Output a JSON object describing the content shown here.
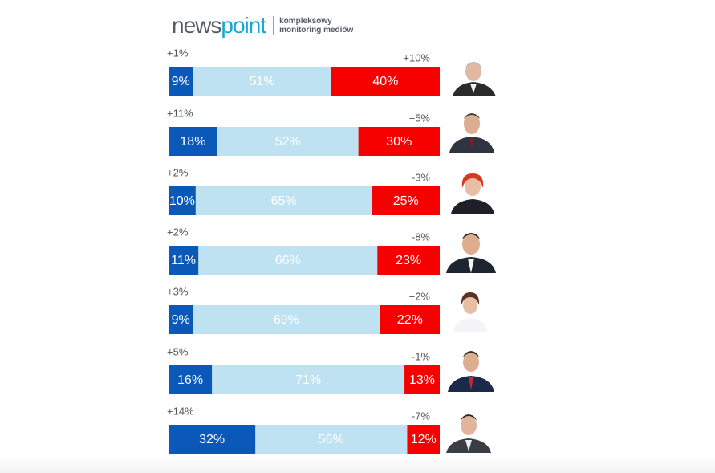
{
  "logo": {
    "word_part1": "news",
    "word_part2": "point",
    "tagline": "kompleksowy monitoring mediów",
    "colors": {
      "dark": "#555b66",
      "accent": "#16a7d6"
    }
  },
  "chart_data": {
    "type": "bar",
    "stacked": true,
    "orientation": "horizontal",
    "colors": {
      "blue": "#0a58b8",
      "lightblue": "#bfe2f2",
      "red": "#f60000"
    },
    "rows": [
      {
        "blue": 9,
        "neutral": 51,
        "red": 40,
        "blue_change": "+1%",
        "red_change": "+10%"
      },
      {
        "blue": 18,
        "neutral": 52,
        "red": 30,
        "blue_change": "+11%",
        "red_change": "+5%"
      },
      {
        "blue": 10,
        "neutral": 65,
        "red": 25,
        "blue_change": "+2%",
        "red_change": "-3%"
      },
      {
        "blue": 11,
        "neutral": 66,
        "red": 23,
        "blue_change": "+2%",
        "red_change": "-8%"
      },
      {
        "blue": 9,
        "neutral": 69,
        "red": 22,
        "blue_change": "+3%",
        "red_change": "+2%"
      },
      {
        "blue": 16,
        "neutral": 71,
        "red": 13,
        "blue_change": "+5%",
        "red_change": "-1%"
      },
      {
        "blue": 32,
        "neutral": 56,
        "red": 12,
        "blue_change": "+14%",
        "red_change": "-7%"
      }
    ]
  }
}
